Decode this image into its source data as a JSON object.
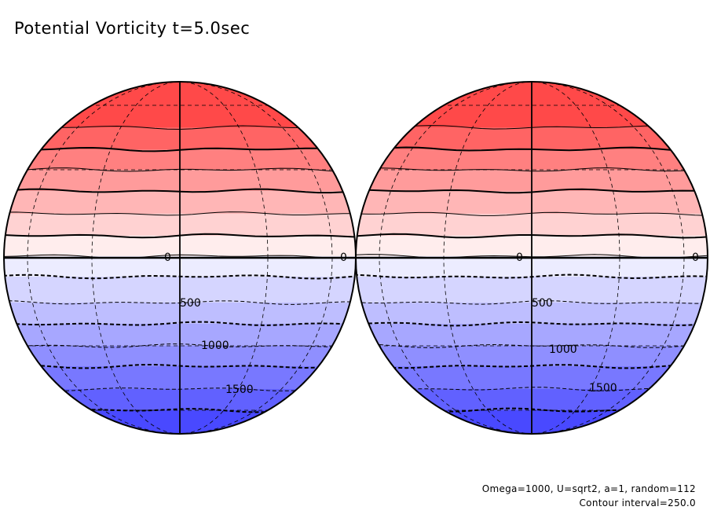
{
  "chart_data": {
    "type": "contour",
    "title": "Potential Vorticity t=5.0sec",
    "projection": "orthographic",
    "panels": [
      {
        "name": "left-hemisphere",
        "contour_labels": [
          "0",
          "0",
          "500",
          "1000",
          "1500"
        ]
      },
      {
        "name": "right-hemisphere",
        "contour_labels": [
          "0",
          "0",
          "500",
          "1000",
          "1500"
        ]
      }
    ],
    "contour_interval": 250.0,
    "colors": {
      "positive": "#ff3b3b",
      "negative": "#3b3bff",
      "zero": "#ffffff"
    },
    "annotations": [
      "Omega=1000, U=sqrt2, a=1, random=112",
      "Contour interval=250.0"
    ]
  }
}
